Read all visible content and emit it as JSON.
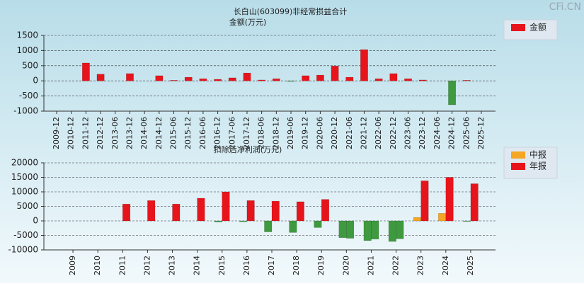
{
  "watermark": "CFi.CN",
  "chart_data": [
    {
      "type": "bar",
      "title": "长白山(603099)非经常损益合计",
      "y_label": "金额(万元)",
      "categories": [
        "2009-12",
        "2010-12",
        "2011-12",
        "2012-12",
        "2013-06",
        "2013-12",
        "2014-06",
        "2014-12",
        "2015-06",
        "2015-12",
        "2016-06",
        "2016-12",
        "2017-06",
        "2017-12",
        "2018-06",
        "2018-12",
        "2019-06",
        "2019-12",
        "2020-06",
        "2020-12",
        "2021-06",
        "2021-12",
        "2022-06",
        "2022-12",
        "2023-06",
        "2023-12",
        "2024-06",
        "2024-12",
        "2025-06",
        "2025-12"
      ],
      "series": [
        {
          "name": "金额",
          "color": "#e8141b",
          "negative_color": "#3f9a3f",
          "values": [
            0,
            0,
            590,
            220,
            0,
            240,
            0,
            170,
            20,
            120,
            70,
            50,
            100,
            260,
            30,
            70,
            -20,
            170,
            190,
            490,
            120,
            1030,
            70,
            240,
            70,
            30,
            0,
            -790,
            20,
            0
          ]
        }
      ],
      "ylim": [
        -1000,
        1500
      ],
      "yticks": [
        -1000,
        -500,
        0,
        500,
        1000,
        1500
      ],
      "grid": true
    },
    {
      "type": "grouped-bar",
      "title": "扣除后净利润(万元)",
      "categories": [
        "2009",
        "2010",
        "2011",
        "2012",
        "2013",
        "2014",
        "2015",
        "2016",
        "2017",
        "2018",
        "2019",
        "2020",
        "2021",
        "2022",
        "2023",
        "2024",
        "2025"
      ],
      "series": [
        {
          "name": "中报",
          "color": "#f5a623",
          "negative_color": "#3f9a3f",
          "values": [
            null,
            null,
            null,
            null,
            null,
            null,
            -400,
            -300,
            -3800,
            -4000,
            -2300,
            -5800,
            -6800,
            -7100,
            1200,
            2600,
            -200
          ]
        },
        {
          "name": "年报",
          "color": "#e8141b",
          "negative_color": "#3f9a3f",
          "values": [
            null,
            null,
            5800,
            7000,
            5800,
            7800,
            10000,
            7000,
            6800,
            6600,
            7400,
            -6000,
            -6300,
            -6200,
            13800,
            15000,
            12800
          ]
        }
      ],
      "ylim": [
        -10000,
        20000
      ],
      "yticks": [
        -10000,
        -5000,
        0,
        5000,
        10000,
        15000,
        20000
      ],
      "grid": true
    }
  ]
}
